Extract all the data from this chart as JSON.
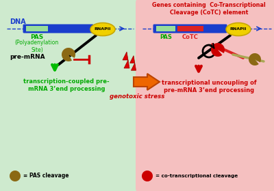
{
  "left_bg": "#ceeace",
  "right_bg": "#f5c0c0",
  "dna_color": "#1a3ecc",
  "pas_color_left": "#99dd99",
  "pas_color_right": "#99dd99",
  "cotc_color": "#dd2222",
  "rnapii_color": "#f0d000",
  "rnapii_edge": "#c8a800",
  "green_arrow_color": "#00bb00",
  "red_arrow_color": "#cc0000",
  "pac_man_brown": "#8B6914",
  "pac_man_red": "#cc0000",
  "inhibit_color": "#cc0000",
  "lightning_color": "#dd0000",
  "orange_arrow": "#ee6600",
  "orange_arrow_edge": "#bb4400",
  "left_text_color": "#00aa00",
  "right_text_color": "#cc0000",
  "black": "#000000",
  "left_bottom_text": "transcription-coupled pre-\nmRNA 3’end processing",
  "right_bottom_text": "transcriptional uncoupling of\npre-mRNA 3’end processing",
  "genotoxic_text": "genotoxic stress",
  "left_legend_text": "= PAS cleavage",
  "right_legend_text": "= co-transcriptional cleavage",
  "dna_label": "DNA",
  "pas_label_left": "PAS",
  "pas_sub_left": "(Polyadenylation\nSite)",
  "pre_mrna_label": "pre-mRNA",
  "pas_label_right": "PAS",
  "cotc_label": "CoTC",
  "rnapii_label": "RNAPII",
  "right_panel_title": "Genes containing  Co-Transcriptional\nCleavage (CoTC) element"
}
